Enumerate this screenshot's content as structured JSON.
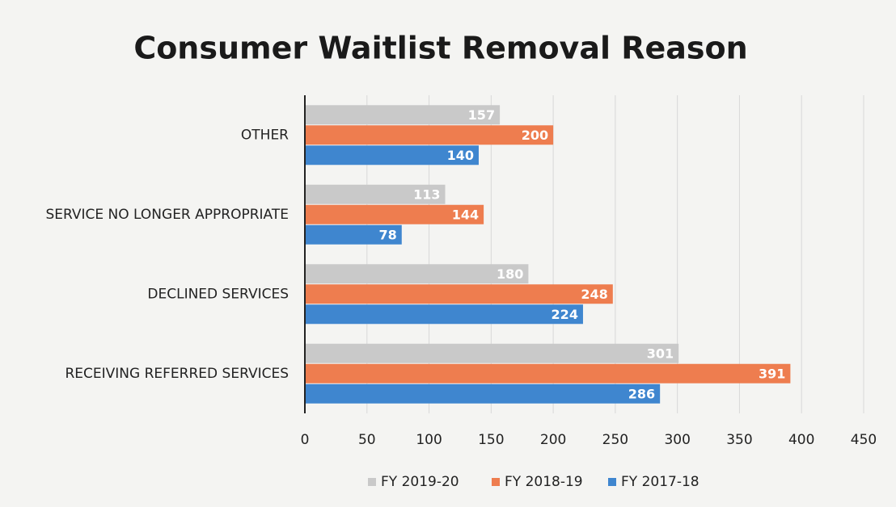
{
  "chart_data": {
    "type": "bar",
    "orientation": "horizontal",
    "title": "Consumer Waitlist Removal Reason",
    "categories": [
      "OTHER",
      "SERVICE NO LONGER APPROPRIATE",
      "DECLINED SERVICES",
      "RECEIVING REFERRED SERVICES"
    ],
    "series": [
      {
        "name": "FY 2019-20",
        "color": "#c9c9c9",
        "values": [
          157,
          113,
          180,
          301
        ]
      },
      {
        "name": "FY 2018-19",
        "color": "#ee7d4f",
        "values": [
          200,
          144,
          248,
          391
        ]
      },
      {
        "name": "FY 2017-18",
        "color": "#3f86cf",
        "values": [
          140,
          78,
          224,
          286
        ]
      }
    ],
    "xlim": [
      0,
      450
    ],
    "xticks": [
      0,
      50,
      100,
      150,
      200,
      250,
      300,
      350,
      400,
      450
    ],
    "grid": true,
    "legend": "bottom"
  }
}
